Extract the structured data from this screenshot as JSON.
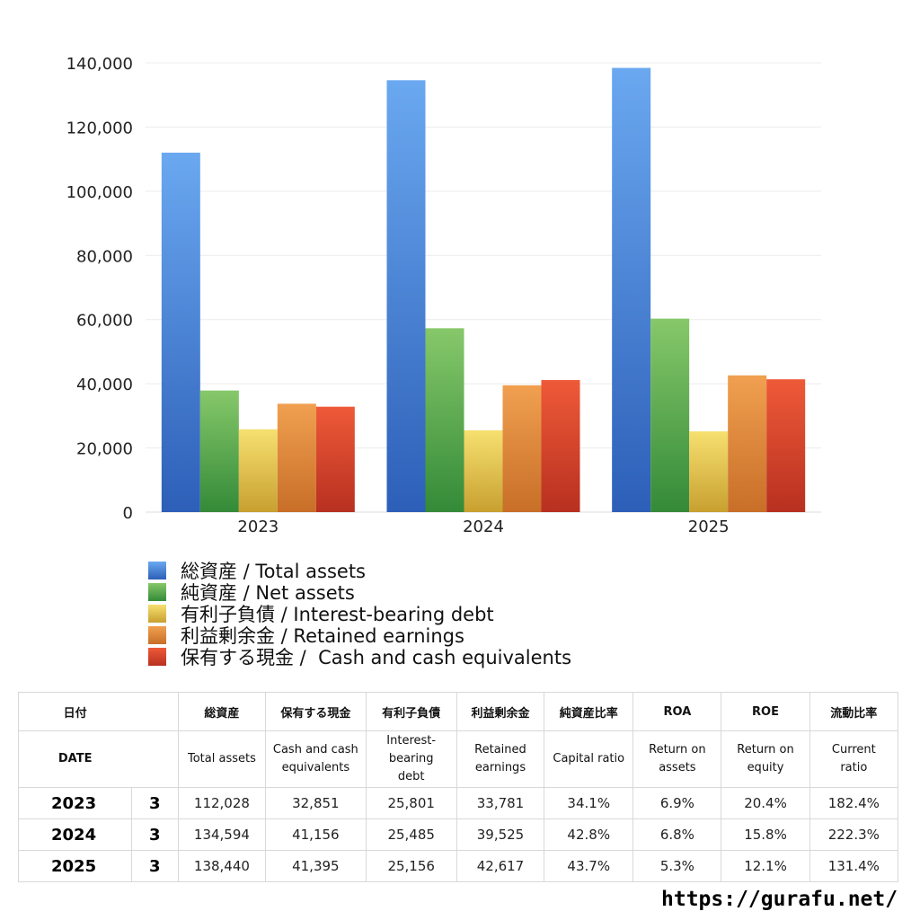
{
  "chart_data": {
    "type": "bar",
    "categories": [
      "2023",
      "2024",
      "2025"
    ],
    "series": [
      {
        "name": "総資産 / Total assets",
        "values": [
          112028,
          134594,
          138440
        ],
        "color_top": "#6aa8f0",
        "color_bottom": "#2d5fb8"
      },
      {
        "name": "純資産 / Net assets",
        "values": [
          37900,
          57300,
          60300
        ],
        "color_top": "#86c86a",
        "color_bottom": "#348a38"
      },
      {
        "name": "有利子負債 / Interest-bearing debt",
        "values": [
          25801,
          25485,
          25156
        ],
        "color_top": "#f6e070",
        "color_bottom": "#c8a030"
      },
      {
        "name": "利益剰余金 / Retained earnings",
        "values": [
          33781,
          39525,
          42617
        ],
        "color_top": "#f0a050",
        "color_bottom": "#c86e28"
      },
      {
        "name": "保有する現金 /  Cash and cash equivalents",
        "values": [
          32851,
          41156,
          41395
        ],
        "color_top": "#ee5a38",
        "color_bottom": "#b83020"
      }
    ],
    "yticks": [
      "0",
      "20,000",
      "40,000",
      "60,000",
      "80,000",
      "100,000",
      "120,000",
      "140,000"
    ],
    "ylim": [
      0,
      140000
    ],
    "grid": true,
    "legend_position": "bottom"
  },
  "table": {
    "headers_ja": [
      "日付",
      "",
      "総資産",
      "保有する現金",
      "有利子負債",
      "利益剰余金",
      "純資産比率",
      "ROA",
      "ROE",
      "流動比率"
    ],
    "headers_en": [
      "DATE",
      "",
      "Total assets",
      "Cash and cash\nequivalents",
      "Interest-\nbearing\ndebt",
      "Retained\nearnings",
      "Capital ratio",
      "Return on\nassets",
      "Return on\nequity",
      "Current\nratio"
    ],
    "rows": [
      [
        "2023",
        "3",
        "112,028",
        "32,851",
        "25,801",
        "33,781",
        "34.1%",
        "6.9%",
        "20.4%",
        "182.4%"
      ],
      [
        "2024",
        "3",
        "134,594",
        "41,156",
        "25,485",
        "39,525",
        "42.8%",
        "6.8%",
        "15.8%",
        "222.3%"
      ],
      [
        "2025",
        "3",
        "138,440",
        "41,395",
        "25,156",
        "42,617",
        "43.7%",
        "5.3%",
        "12.1%",
        "131.4%"
      ]
    ]
  },
  "footer": {
    "url": "https://gurafu.net/"
  }
}
